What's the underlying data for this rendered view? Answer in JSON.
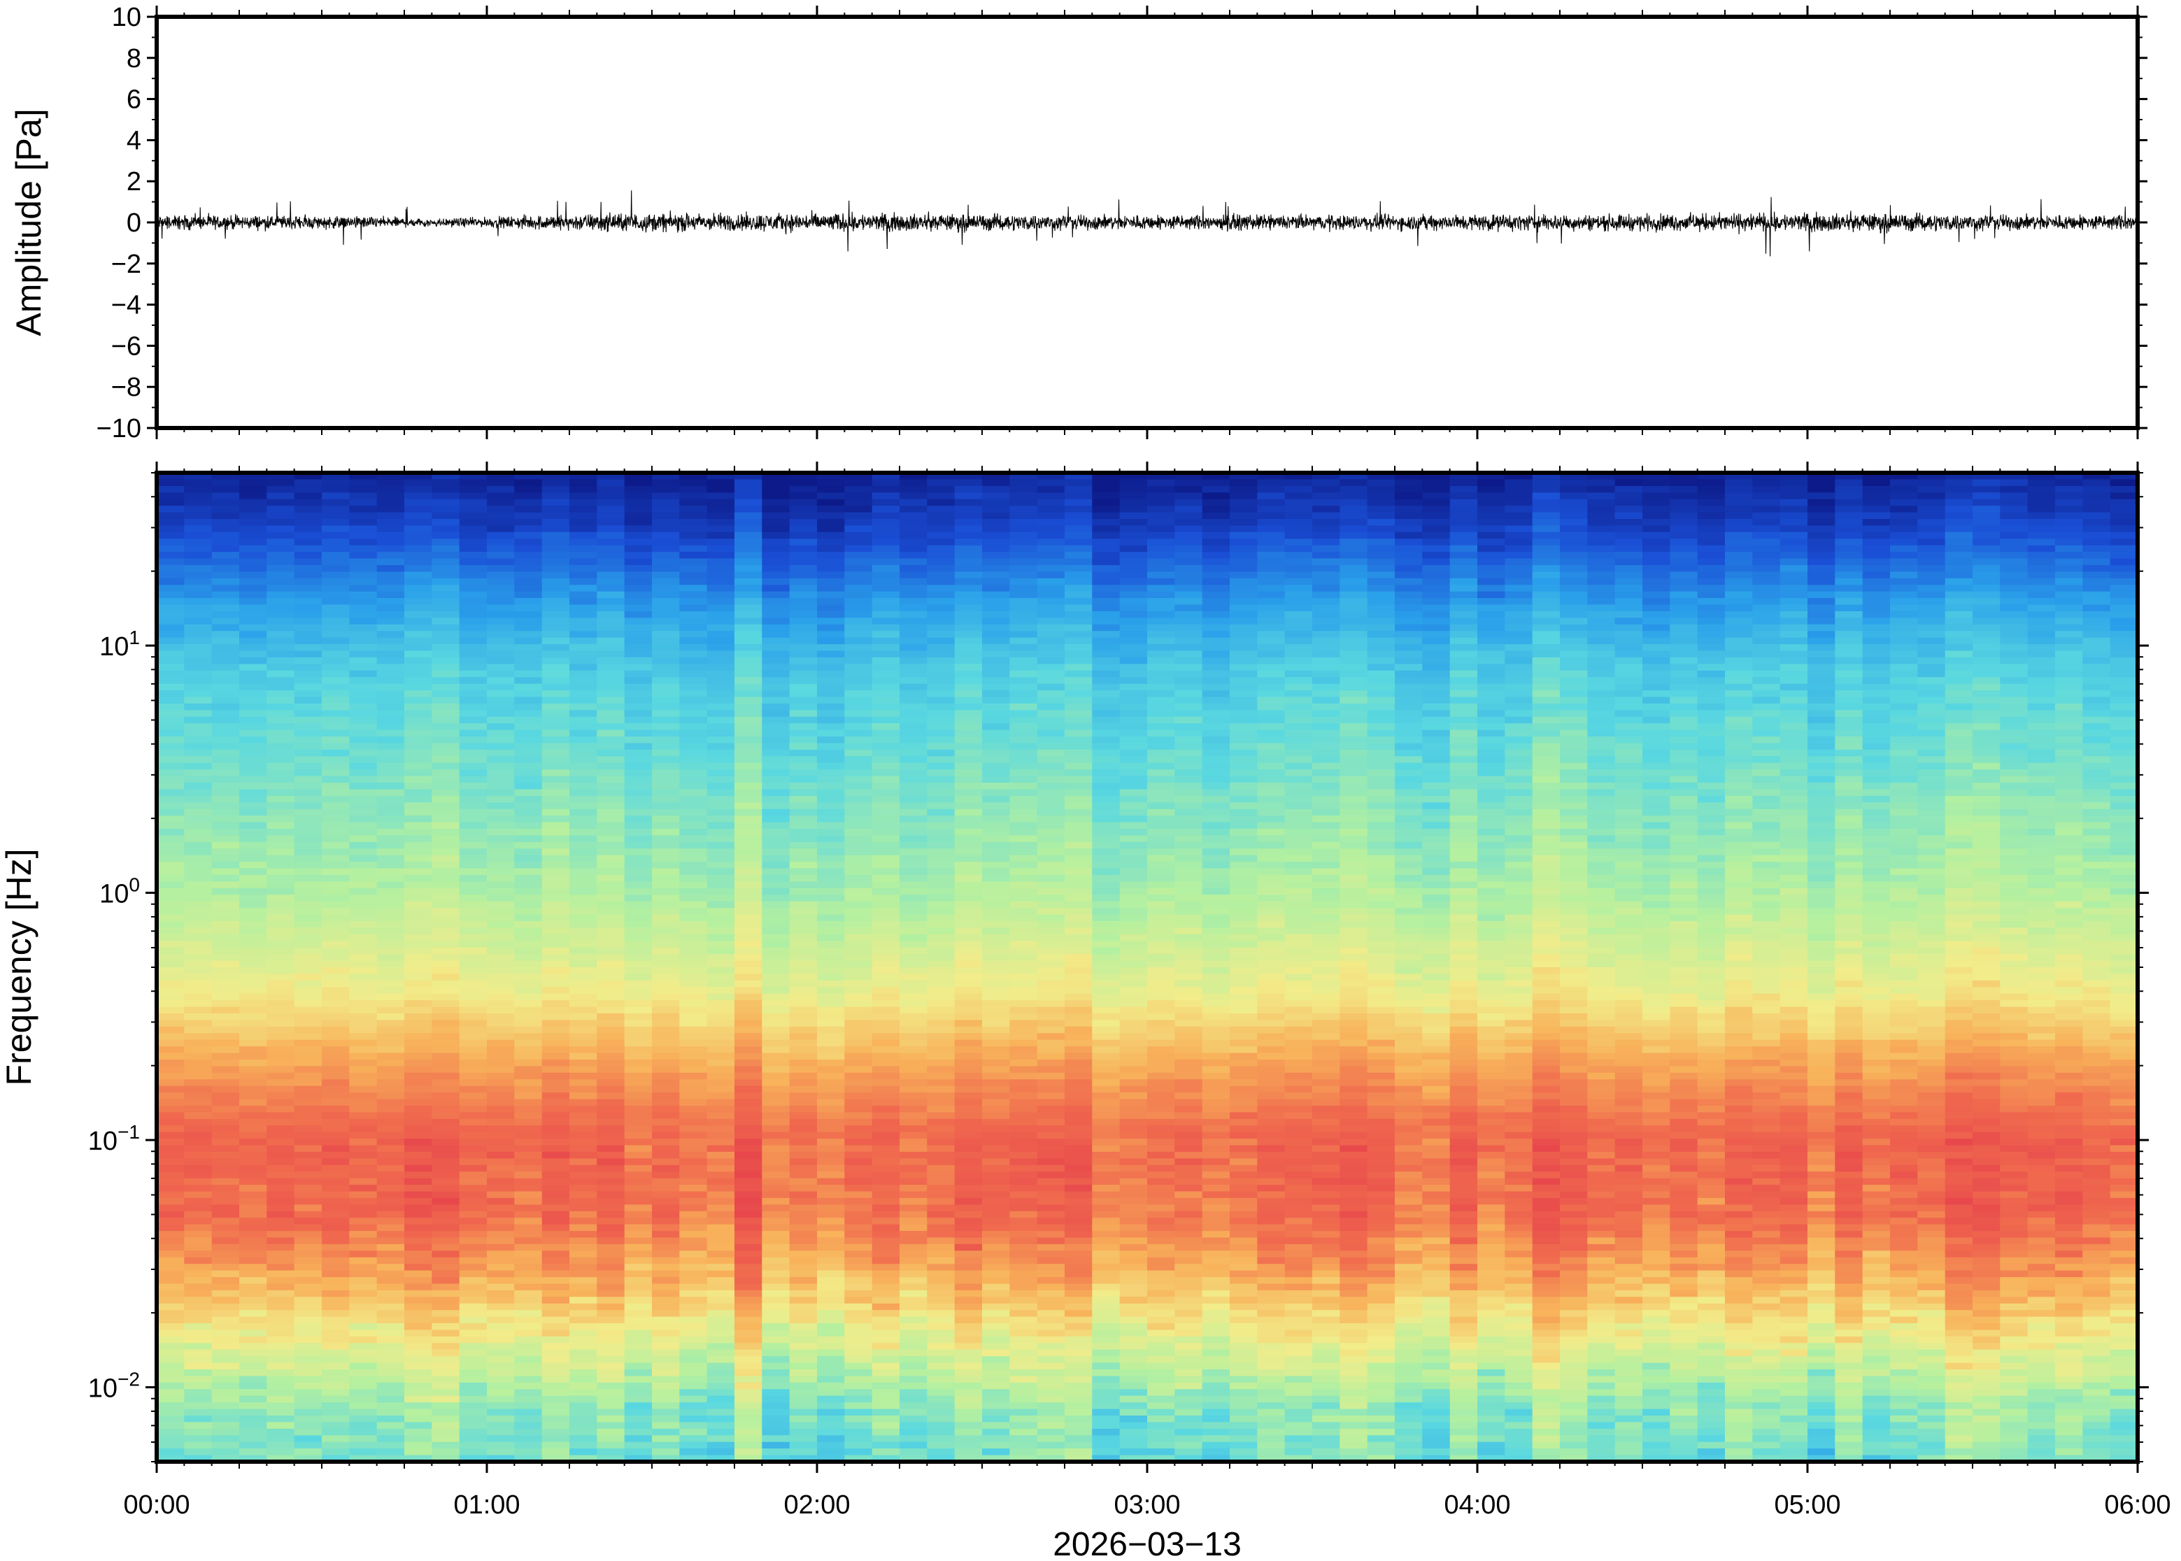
{
  "chart_data": [
    {
      "type": "line",
      "panel": "waveform",
      "ylabel": "Amplitude [Pa]",
      "xlabel": "",
      "ylim": [
        -10,
        10
      ],
      "yticks": [
        10,
        8,
        6,
        4,
        2,
        0,
        -2,
        -4,
        -6,
        -8,
        -10
      ],
      "ytick_labels": [
        "10",
        "8",
        "6",
        "4",
        "2",
        "0",
        "−2",
        "−4",
        "−6",
        "−8",
        "−10"
      ],
      "xlim": [
        "00:00",
        "06:00"
      ],
      "noise_envelope": {
        "x_hours": [
          0.0,
          0.5,
          0.9,
          1.0,
          1.15,
          1.25,
          1.4,
          1.55,
          1.75,
          2.05,
          2.5,
          3.0,
          3.5,
          4.0,
          4.5,
          4.8,
          5.2,
          5.5,
          6.0
        ],
        "typical_abs": [
          0.45,
          0.4,
          0.25,
          0.3,
          0.45,
          0.5,
          0.55,
          0.55,
          0.55,
          0.55,
          0.5,
          0.45,
          0.45,
          0.5,
          0.5,
          0.55,
          0.55,
          0.5,
          0.45
        ],
        "peak_abs": [
          1.1,
          1.5,
          0.5,
          0.7,
          1.6,
          1.2,
          1.8,
          1.8,
          1.4,
          1.6,
          1.2,
          1.2,
          1.1,
          1.3,
          1.1,
          2.0,
          1.2,
          1.3,
          1.1
        ]
      },
      "grid": false
    },
    {
      "type": "heatmap",
      "panel": "spectrogram",
      "ylabel": "Frequency [Hz]",
      "xlabel": "2026−03−13",
      "y_scale": "log",
      "ylim_hz": [
        0.005,
        50
      ],
      "yticks": [
        0.01,
        0.1,
        1,
        10
      ],
      "ytick_labels": [
        {
          "base": "10",
          "exp": "−2"
        },
        {
          "base": "10",
          "exp": "−1"
        },
        {
          "base": "10",
          "exp": "0"
        },
        {
          "base": "10",
          "exp": "1"
        }
      ],
      "xlim": [
        "00:00",
        "06:00"
      ],
      "xtick_labels": [
        "00:00",
        "01:00",
        "02:00",
        "03:00",
        "04:00",
        "05:00",
        "06:00"
      ],
      "colormap": "rainbow (blue = low power, red = high power)",
      "colormap_stops": [
        "#0d1b8a",
        "#1a4fd6",
        "#2aa0ea",
        "#5ad8e0",
        "#b4f0a0",
        "#f2ec8a",
        "#f8b25a",
        "#f06a4e",
        "#e8484c"
      ],
      "frequency_profile": {
        "freq_hz": [
          50,
          30,
          15,
          8,
          3,
          1,
          0.4,
          0.2,
          0.1,
          0.05,
          0.03,
          0.015,
          0.008,
          0.005
        ],
        "relative_power": [
          0.02,
          0.1,
          0.25,
          0.35,
          0.42,
          0.5,
          0.62,
          0.78,
          0.9,
          0.88,
          0.78,
          0.6,
          0.45,
          0.42
        ]
      },
      "grid": false
    }
  ]
}
